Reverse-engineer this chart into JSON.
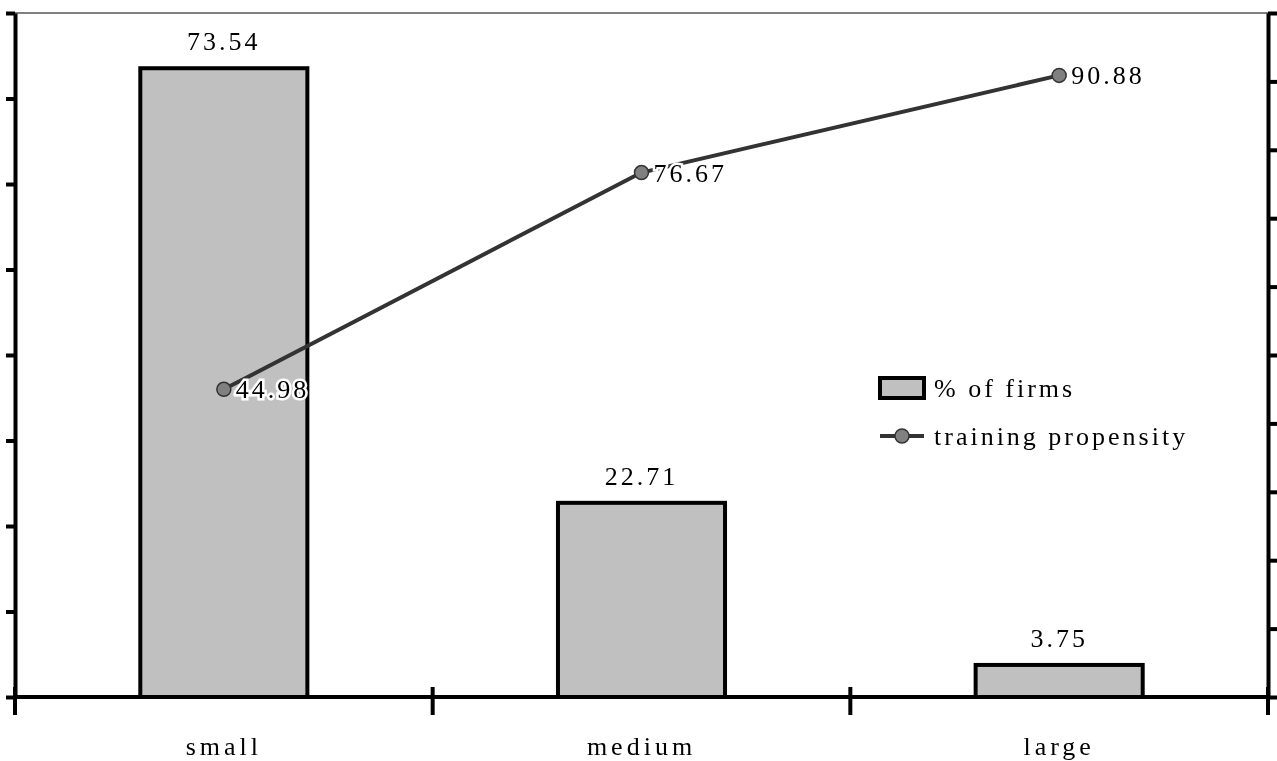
{
  "chart_data": {
    "type": "bar",
    "categories": [
      "small",
      "medium",
      "large"
    ],
    "series": [
      {
        "name": "% of firms",
        "color": "#c0c0c0",
        "values": [
          73.54,
          22.71,
          3.75
        ]
      },
      {
        "name": "training propensity",
        "type": "line",
        "axis": "y2",
        "color": "#808080",
        "values": [
          44.98,
          76.67,
          90.88
        ]
      }
    ],
    "ylim": [
      0,
      80
    ],
    "yticks": [
      {
        "value": 0,
        "label": null
      },
      {
        "value": 10,
        "label": null
      },
      {
        "value": 20,
        "label": null
      },
      {
        "value": 30,
        "label": null
      },
      {
        "value": 40,
        "label": null
      },
      {
        "value": 50,
        "label": null
      },
      {
        "value": 60,
        "label": null
      },
      {
        "value": 70,
        "label": null
      },
      {
        "value": 80,
        "label": null
      }
    ],
    "y2lim": [
      0,
      100
    ],
    "y2ticks": [
      {
        "value": 0,
        "label": null
      },
      {
        "value": 10,
        "label": null
      },
      {
        "value": 20,
        "label": null
      },
      {
        "value": 30,
        "label": null
      },
      {
        "value": 40,
        "label": null
      },
      {
        "value": 50,
        "label": null
      },
      {
        "value": 60,
        "label": null
      },
      {
        "value": 70,
        "label": null
      },
      {
        "value": 80,
        "label": null
      },
      {
        "value": 90,
        "label": null
      },
      {
        "value": 100,
        "label": null
      }
    ],
    "tick_labels": "x",
    "data_labels": true,
    "legend": "right",
    "marker": "circle"
  }
}
